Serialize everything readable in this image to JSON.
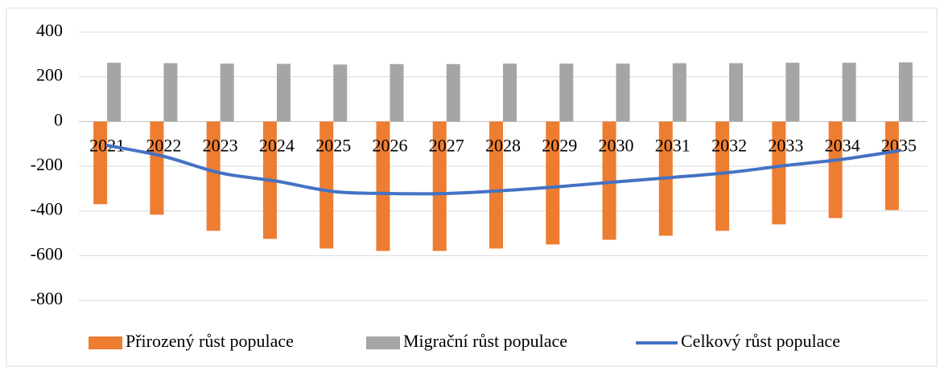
{
  "chart_data": {
    "type": "bar-line",
    "categories": [
      "2021",
      "2022",
      "2023",
      "2024",
      "2025",
      "2026",
      "2027",
      "2028",
      "2029",
      "2030",
      "2031",
      "2032",
      "2033",
      "2034",
      "2035"
    ],
    "series": [
      {
        "name": "Přirozený růst populace",
        "type": "bar",
        "color": "#ed7d31",
        "values": [
          -370,
          -417,
          -489,
          -525,
          -568,
          -579,
          -579,
          -568,
          -550,
          -529,
          -511,
          -489,
          -460,
          -432,
          -396
        ]
      },
      {
        "name": "Migrační růst populace",
        "type": "bar",
        "color": "#a5a5a5",
        "values": [
          263,
          261,
          259,
          258,
          255,
          257,
          257,
          259,
          259,
          259,
          261,
          261,
          263,
          263,
          265
        ]
      },
      {
        "name": "Celkový růst populace",
        "type": "line",
        "color": "#4472c4",
        "values": [
          -107,
          -156,
          -230,
          -267,
          -313,
          -322,
          -322,
          -309,
          -291,
          -270,
          -250,
          -228,
          -197,
          -169,
          -131
        ]
      }
    ],
    "ylim": [
      -800,
      400
    ],
    "yticks": [
      -800,
      -600,
      -400,
      -200,
      0,
      200,
      400
    ],
    "grid": true,
    "legend": "bottom"
  }
}
